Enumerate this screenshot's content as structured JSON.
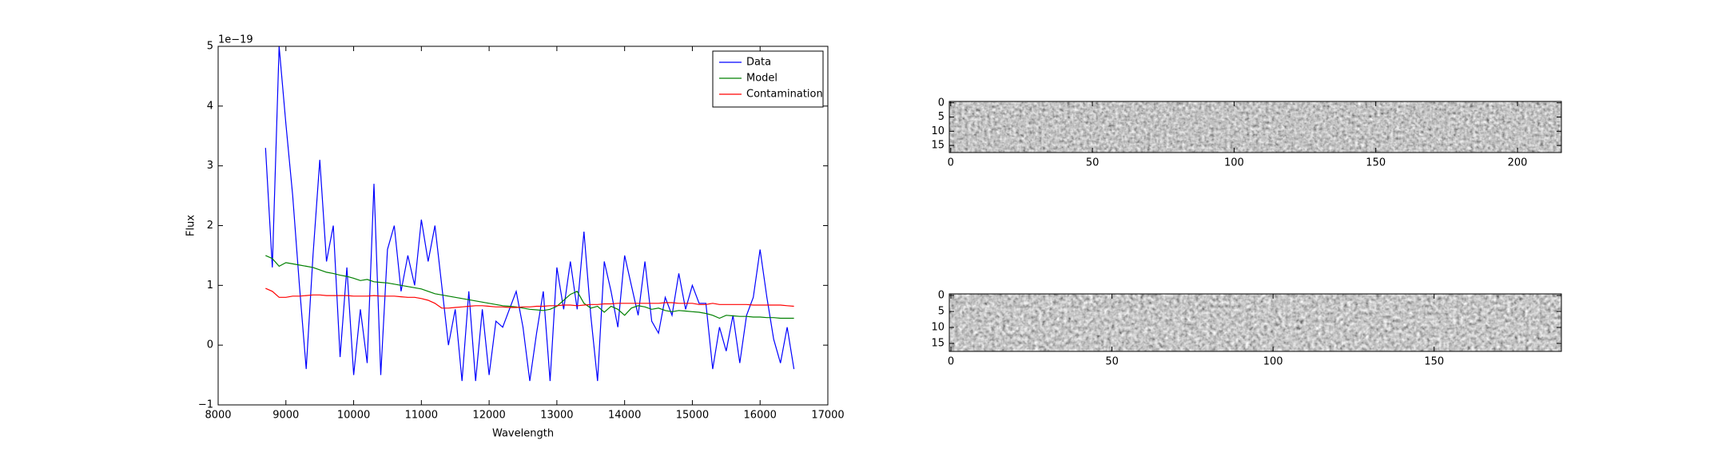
{
  "chart_data": [
    {
      "type": "line",
      "xlabel": "Wavelength",
      "ylabel": "Flux",
      "offset_text": "1e−19",
      "x": [
        8700,
        8800,
        8900,
        9000,
        9100,
        9200,
        9300,
        9400,
        9500,
        9600,
        9700,
        9800,
        9900,
        10000,
        10100,
        10200,
        10300,
        10400,
        10500,
        10600,
        10700,
        10800,
        10900,
        11000,
        11100,
        11200,
        11300,
        11400,
        11500,
        11600,
        11700,
        11800,
        11900,
        12000,
        12100,
        12200,
        12300,
        12400,
        12500,
        12600,
        12700,
        12800,
        12900,
        13000,
        13100,
        13200,
        13300,
        13400,
        13500,
        13600,
        13700,
        13800,
        13900,
        14000,
        14100,
        14200,
        14300,
        14400,
        14500,
        14600,
        14700,
        14800,
        14900,
        15000,
        15100,
        15200,
        15300,
        15400,
        15500,
        15600,
        15700,
        15800,
        15900,
        16000,
        16100,
        16200,
        16300,
        16400,
        16500
      ],
      "series": [
        {
          "name": "Data",
          "color": "#0000ff",
          "values": [
            3.3,
            1.3,
            5.0,
            3.7,
            2.5,
            1.0,
            -0.4,
            1.5,
            3.1,
            1.4,
            2.0,
            -0.2,
            1.3,
            -0.5,
            0.6,
            -0.3,
            2.7,
            -0.5,
            1.6,
            2.0,
            0.9,
            1.5,
            1.0,
            2.1,
            1.4,
            2.0,
            1.0,
            0.0,
            0.6,
            -0.6,
            0.9,
            -0.6,
            0.6,
            -0.5,
            0.4,
            0.3,
            0.6,
            0.9,
            0.3,
            -0.6,
            0.2,
            0.9,
            -0.6,
            1.3,
            0.6,
            1.4,
            0.6,
            1.9,
            0.5,
            -0.6,
            1.4,
            0.9,
            0.3,
            1.5,
            1.0,
            0.5,
            1.4,
            0.4,
            0.2,
            0.8,
            0.5,
            1.2,
            0.6,
            1.0,
            0.7,
            0.7,
            -0.4,
            0.3,
            -0.1,
            0.5,
            -0.3,
            0.5,
            0.8,
            1.6,
            0.8,
            0.1,
            -0.3,
            0.3,
            -0.4
          ]
        },
        {
          "name": "Model",
          "color": "#008000",
          "values": [
            1.5,
            1.45,
            1.32,
            1.38,
            1.36,
            1.34,
            1.32,
            1.3,
            1.26,
            1.22,
            1.2,
            1.17,
            1.15,
            1.12,
            1.08,
            1.1,
            1.06,
            1.05,
            1.04,
            1.02,
            1.0,
            0.98,
            0.96,
            0.94,
            0.9,
            0.86,
            0.84,
            0.82,
            0.8,
            0.78,
            0.76,
            0.74,
            0.72,
            0.7,
            0.68,
            0.66,
            0.65,
            0.64,
            0.62,
            0.6,
            0.59,
            0.58,
            0.6,
            0.65,
            0.75,
            0.85,
            0.9,
            0.7,
            0.62,
            0.65,
            0.55,
            0.65,
            0.6,
            0.5,
            0.62,
            0.66,
            0.64,
            0.6,
            0.62,
            0.58,
            0.56,
            0.58,
            0.57,
            0.56,
            0.55,
            0.53,
            0.5,
            0.45,
            0.5,
            0.49,
            0.48,
            0.48,
            0.47,
            0.47,
            0.46,
            0.46,
            0.45,
            0.45,
            0.45
          ]
        },
        {
          "name": "Contamination",
          "color": "#ff0000",
          "values": [
            0.95,
            0.9,
            0.8,
            0.8,
            0.82,
            0.82,
            0.83,
            0.84,
            0.84,
            0.83,
            0.83,
            0.83,
            0.83,
            0.82,
            0.82,
            0.82,
            0.83,
            0.82,
            0.82,
            0.82,
            0.81,
            0.8,
            0.8,
            0.78,
            0.75,
            0.7,
            0.62,
            0.62,
            0.63,
            0.64,
            0.65,
            0.66,
            0.66,
            0.65,
            0.64,
            0.64,
            0.63,
            0.63,
            0.64,
            0.64,
            0.65,
            0.65,
            0.66,
            0.66,
            0.67,
            0.67,
            0.66,
            0.67,
            0.68,
            0.68,
            0.69,
            0.69,
            0.7,
            0.7,
            0.7,
            0.7,
            0.7,
            0.7,
            0.7,
            0.71,
            0.71,
            0.7,
            0.7,
            0.7,
            0.68,
            0.68,
            0.7,
            0.68,
            0.68,
            0.68,
            0.68,
            0.68,
            0.67,
            0.67,
            0.67,
            0.67,
            0.67,
            0.66,
            0.65
          ]
        }
      ],
      "xlim": [
        8000,
        17000
      ],
      "xticks": [
        8000,
        9000,
        10000,
        11000,
        12000,
        13000,
        14000,
        15000,
        16000,
        17000
      ],
      "ylim": [
        -1,
        5
      ],
      "yticks": [
        {
          "value": -1,
          "label": "−1"
        },
        0,
        1,
        2,
        3,
        4,
        5
      ],
      "legend": "upper right"
    },
    {
      "type": "image",
      "xlim": [
        -0.5,
        215.5
      ],
      "xticks": [
        0,
        50,
        100,
        150,
        200
      ],
      "ylim": [
        17.5,
        -0.5
      ],
      "yticks": [
        0,
        5,
        10,
        15
      ]
    },
    {
      "type": "image",
      "xlim": [
        -0.5,
        189.5
      ],
      "xticks": [
        0,
        50,
        100,
        150
      ],
      "ylim": [
        17.5,
        -0.5
      ],
      "yticks": [
        0,
        5,
        10,
        15
      ]
    }
  ]
}
